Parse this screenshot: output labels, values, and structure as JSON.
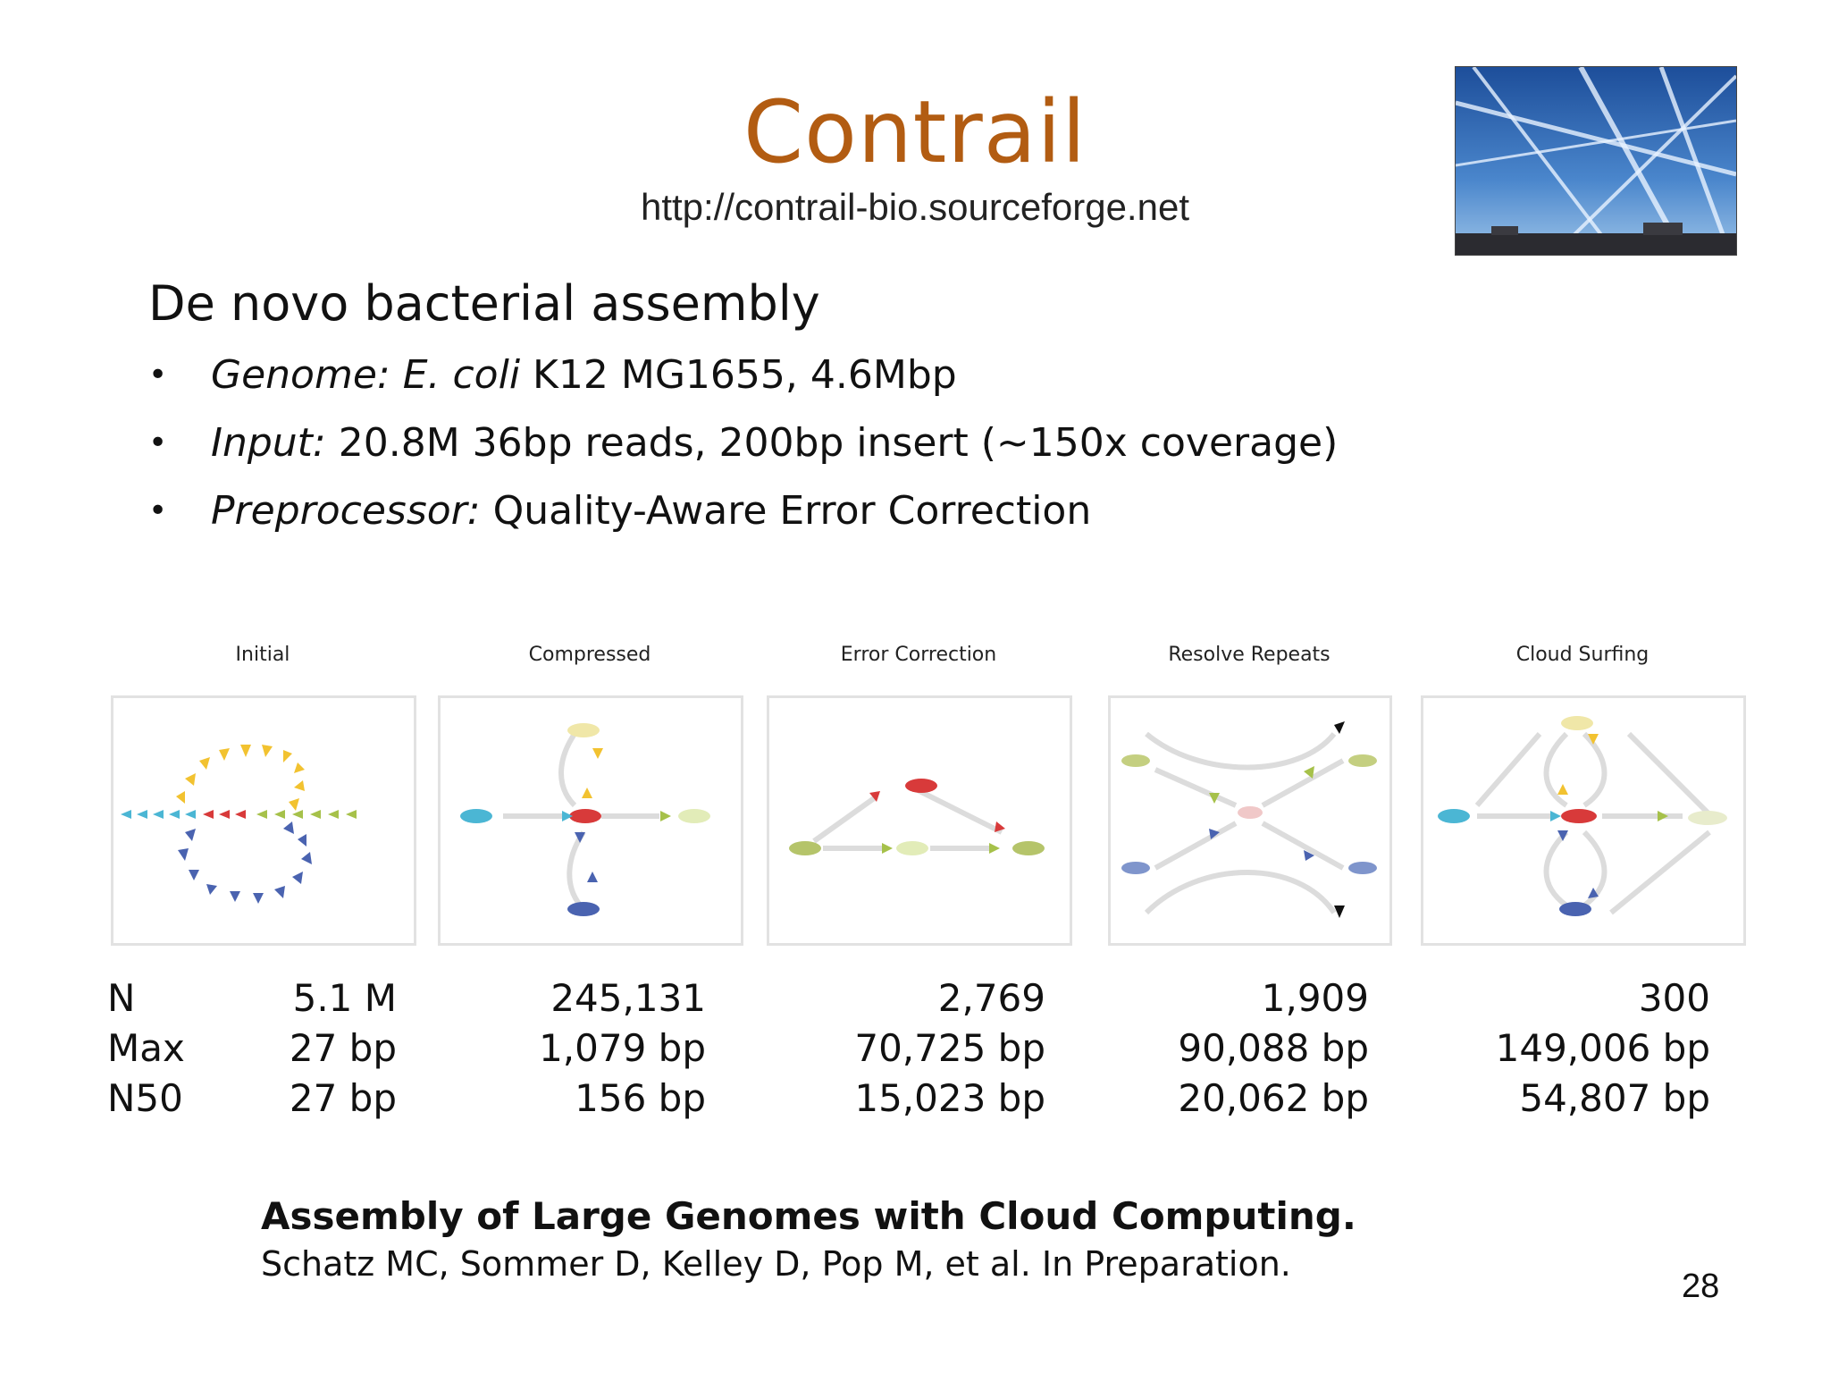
{
  "slide": {
    "title": "Contrail",
    "url": "http://contrail-bio.sourceforge.net",
    "heading": "De novo bacterial assembly",
    "bullets": [
      {
        "label": "Genome: E. coli",
        "text": " K12 MG1655, 4.6Mbp"
      },
      {
        "label": "Input:",
        "text": " 20.8M 36bp reads, 200bp insert (~150x coverage)"
      },
      {
        "label": "Preprocessor:",
        "text": " Quality-Aware Error Correction"
      }
    ],
    "panels": [
      "Initial",
      "Compressed",
      "Error Correction",
      "Resolve Repeats",
      "Cloud Surfing"
    ],
    "stats": {
      "row_labels": [
        "N",
        "Max",
        "N50"
      ],
      "columns": [
        [
          "5.1 M",
          "27 bp",
          "27 bp"
        ],
        [
          "245,131",
          "1,079 bp",
          "156 bp"
        ],
        [
          "2,769",
          "70,725 bp",
          "15,023 bp"
        ],
        [
          "1,909",
          "90,088 bp",
          "20,062 bp"
        ],
        [
          "300",
          "149,006 bp",
          "54,807 bp"
        ]
      ]
    },
    "reference_title": "Assembly of Large Genomes with Cloud Computing.",
    "reference_authors": "Schatz MC, Sommer D, Kelley D, Pop M, et al. In Preparation.",
    "page_number": "28"
  },
  "colors": {
    "title": "#b25c12",
    "yellow": "#f2c230",
    "cyan": "#4bb6d4",
    "red": "#d83a3a",
    "green": "#a6c14a",
    "blue": "#4a63b0"
  },
  "image": {
    "name": "contrail-sky-photo"
  }
}
